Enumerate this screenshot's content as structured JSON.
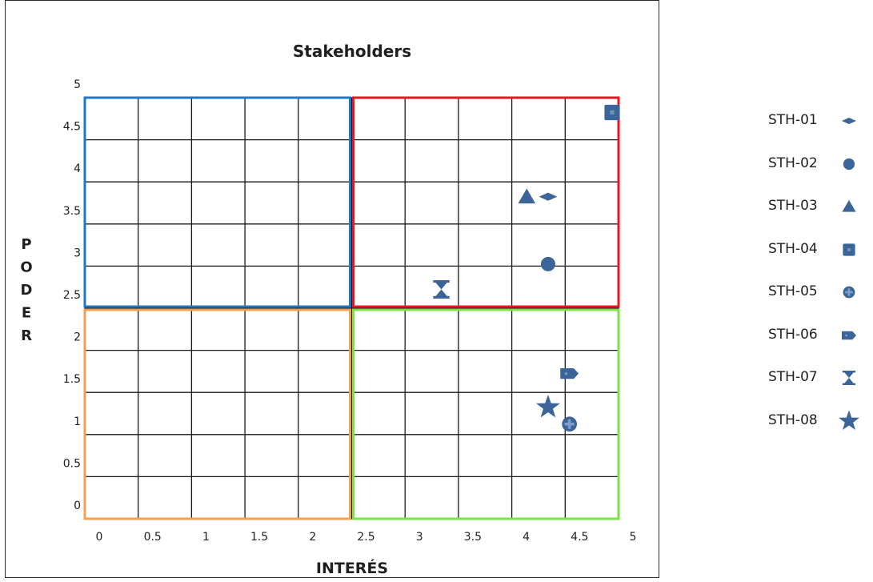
{
  "chart_data": {
    "type": "scatter",
    "title": "Stakeholders",
    "xlabel": "INTERÉS",
    "ylabel": "PODER",
    "xlim": [
      0,
      5
    ],
    "ylim": [
      0,
      5
    ],
    "x_ticks": [
      "0",
      "0.5",
      "1",
      "1.5",
      "2",
      "2.5",
      "3",
      "3.5",
      "4",
      "4.5",
      "5"
    ],
    "y_ticks": [
      "0",
      "0.5",
      "1",
      "1.5",
      "2",
      "2.5",
      "3",
      "3.5",
      "4",
      "4.5",
      "5"
    ],
    "grid": true,
    "quadrants": [
      {
        "x": [
          0,
          2.5
        ],
        "y": [
          2.5,
          5
        ],
        "color": "#1f77c4"
      },
      {
        "x": [
          2.5,
          5
        ],
        "y": [
          2.5,
          5
        ],
        "color": "#e8161e"
      },
      {
        "x": [
          0,
          2.5
        ],
        "y": [
          0,
          2.5
        ],
        "color": "#f0a050"
      },
      {
        "x": [
          2.5,
          5
        ],
        "y": [
          0,
          2.5
        ],
        "color": "#7ee04a"
      }
    ],
    "marker_color": "#3b6498",
    "series": [
      {
        "name": "STH-01",
        "marker": "diamond",
        "x": 4.4,
        "y": 3.9
      },
      {
        "name": "STH-02",
        "marker": "circle",
        "x": 4.4,
        "y": 3.1
      },
      {
        "name": "STH-03",
        "marker": "triangle",
        "x": 4.2,
        "y": 3.9
      },
      {
        "name": "STH-04",
        "marker": "square",
        "x": 5.0,
        "y": 4.9
      },
      {
        "name": "STH-05",
        "marker": "cross-circle",
        "x": 4.6,
        "y": 1.2
      },
      {
        "name": "STH-06",
        "marker": "tag",
        "x": 4.6,
        "y": 1.8
      },
      {
        "name": "STH-07",
        "marker": "hourglass",
        "x": 3.4,
        "y": 2.8
      },
      {
        "name": "STH-08",
        "marker": "star",
        "x": 4.4,
        "y": 1.4
      }
    ],
    "legend_position": "right"
  }
}
